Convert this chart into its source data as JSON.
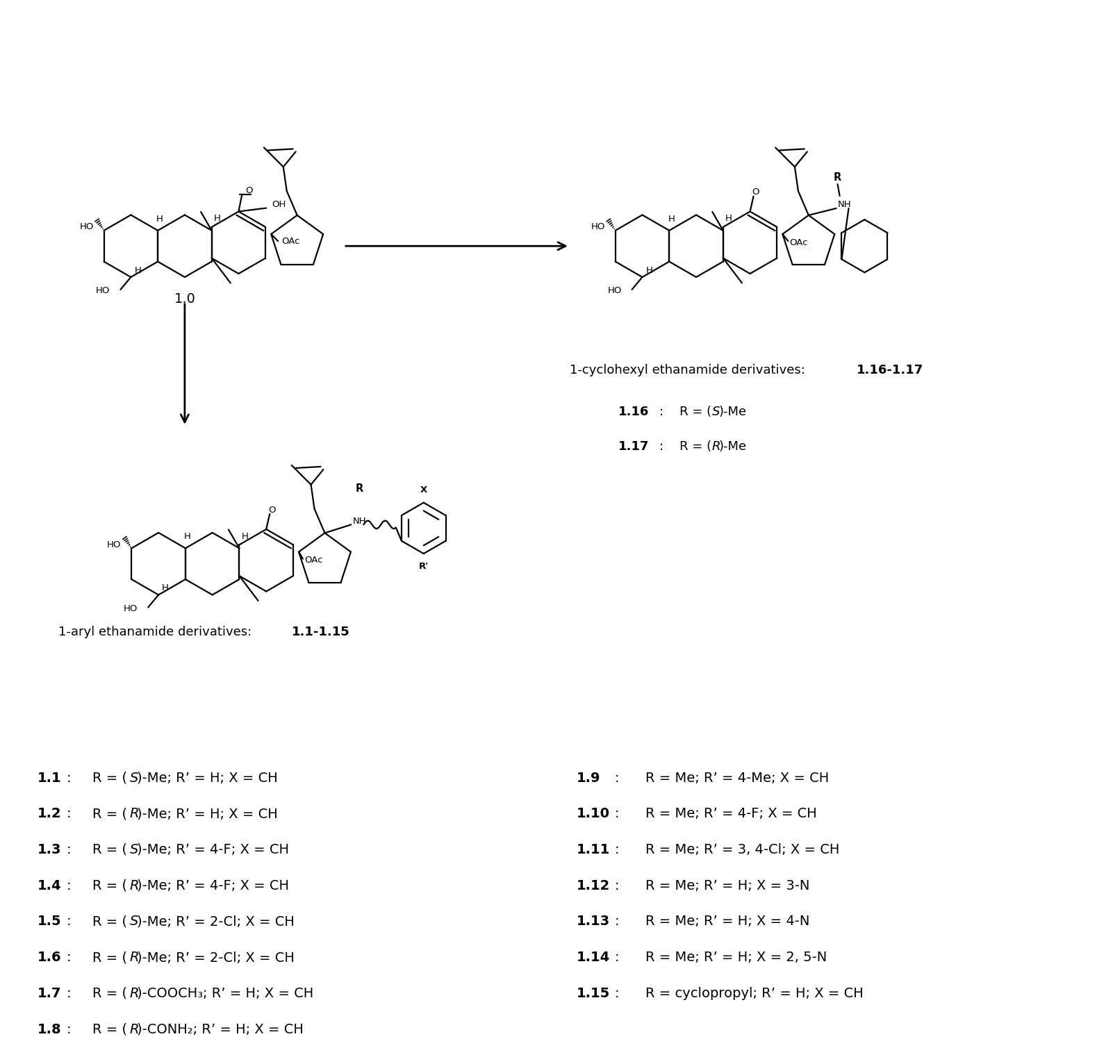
{
  "background_color": "#ffffff",
  "fig_width": 16.02,
  "fig_height": 15.32,
  "compounds": {
    "left_labels": [
      {
        "num": "1.1",
        "colon": ":",
        "text_parts": [
          [
            "R = (",
            false,
            false
          ],
          [
            "S",
            false,
            true
          ],
          [
            ")-Me; R’ = H; X = CH",
            false,
            false
          ]
        ]
      },
      {
        "num": "1.2",
        "colon": ":",
        "text_parts": [
          [
            "R = (",
            false,
            false
          ],
          [
            "R",
            false,
            true
          ],
          [
            ")-Me; R’ = H; X = CH",
            false,
            false
          ]
        ]
      },
      {
        "num": "1.3",
        "colon": ":",
        "text_parts": [
          [
            "R = (",
            false,
            false
          ],
          [
            "S",
            false,
            true
          ],
          [
            ")-Me; R’ = 4-F; X = CH",
            false,
            false
          ]
        ]
      },
      {
        "num": "1.4",
        "colon": ":",
        "text_parts": [
          [
            "R = (",
            false,
            false
          ],
          [
            "R",
            false,
            true
          ],
          [
            ")-Me; R’ = 4-F; X = CH",
            false,
            false
          ]
        ]
      },
      {
        "num": "1.5",
        "colon": ":",
        "text_parts": [
          [
            "R = (",
            false,
            false
          ],
          [
            "S",
            false,
            true
          ],
          [
            ")-Me; R’ = 2-Cl; X = CH",
            false,
            false
          ]
        ]
      },
      {
        "num": "1.6",
        "colon": ":",
        "text_parts": [
          [
            "R = (",
            false,
            false
          ],
          [
            "R",
            false,
            true
          ],
          [
            ")-Me; R’ = 2-Cl; X = CH",
            false,
            false
          ]
        ]
      },
      {
        "num": "1.7",
        "colon": ":",
        "text_parts": [
          [
            "R = (",
            false,
            false
          ],
          [
            "R",
            false,
            true
          ],
          [
            ")-COOCH₃; R’ = H; X = CH",
            false,
            false
          ]
        ]
      },
      {
        "num": "1.8",
        "colon": ":",
        "text_parts": [
          [
            "R = (",
            false,
            false
          ],
          [
            "R",
            false,
            true
          ],
          [
            ")-CONH₂; R’ = H; X = CH",
            false,
            false
          ]
        ]
      }
    ],
    "right_labels": [
      {
        "num": "1.9",
        "colon": ":",
        "text_parts": [
          [
            "R = Me; R’ = 4-Me; X = CH",
            false,
            false
          ]
        ]
      },
      {
        "num": "1.10",
        "colon": ":",
        "text_parts": [
          [
            "R = Me; R’ = 4-F; X = CH",
            false,
            false
          ]
        ]
      },
      {
        "num": "1.11",
        "colon": ":",
        "text_parts": [
          [
            "R = Me; R’ = 3, 4-Cl; X = CH",
            false,
            false
          ]
        ]
      },
      {
        "num": "1.12",
        "colon": ":",
        "text_parts": [
          [
            "R = Me; R’ = H; X = 3-N",
            false,
            false
          ]
        ]
      },
      {
        "num": "1.13",
        "colon": ":",
        "text_parts": [
          [
            "R = Me; R’ = H; X = 4-N",
            false,
            false
          ]
        ]
      },
      {
        "num": "1.14",
        "colon": ":",
        "text_parts": [
          [
            "R = Me; R’ = H; X = 2, 5-N",
            false,
            false
          ]
        ]
      },
      {
        "num": "1.15",
        "colon": ":",
        "text_parts": [
          [
            "R = cyclopropyl; R’ = H; X = CH",
            false,
            false
          ]
        ]
      }
    ]
  },
  "c16_num": "1.16",
  "c16_text_parts": [
    [
      "R = (",
      false,
      false
    ],
    [
      "S",
      false,
      true
    ],
    [
      ")-Me",
      false,
      false
    ]
  ],
  "c17_num": "1.17",
  "c17_text_parts": [
    [
      "R = (",
      false,
      false
    ],
    [
      "R",
      false,
      true
    ],
    [
      ")-Me",
      false,
      false
    ]
  ],
  "cyclohexyl_label_normal": "1-cyclohexyl ethanamide derivatives: ",
  "cyclohexyl_label_bold": "1.16-1.17",
  "aryl_label_normal": "1-aryl ethanamide derivatives: ",
  "aryl_label_bold": "1.1-1.15",
  "compound_10_label": "1.0",
  "font_size_main": 14,
  "font_size_struct": 9.5,
  "lw": 1.6
}
